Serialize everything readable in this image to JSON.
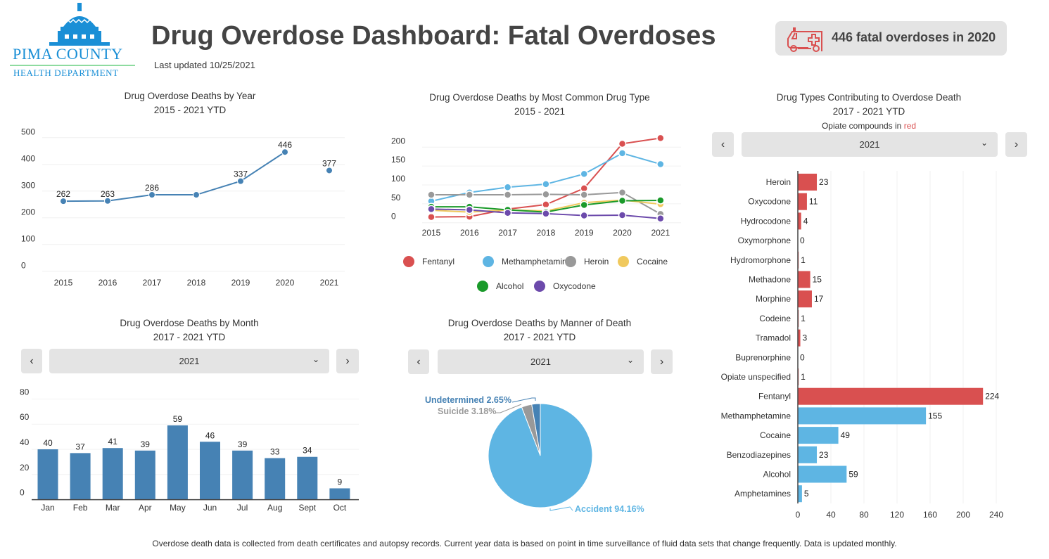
{
  "header": {
    "logo_line1": "PIMA COUNTY",
    "logo_line2": "HEALTH DEPARTMENT",
    "title": "Drug Overdose Dashboard: Fatal Overdoses",
    "updated": "Last updated 10/25/2021",
    "badge": "446 fatal overdoses in 2020",
    "badge_icon": "ambulance-icon"
  },
  "colors": {
    "fentanyl": "#d95050",
    "meth": "#5eb5e3",
    "heroin": "#999999",
    "cocaine": "#f0c95e",
    "alcohol": "#1a9a2a",
    "oxycodone": "#6c4aab",
    "bar": "#4682b4",
    "opiate": "#d95050",
    "nonopiate": "#5eb5e3"
  },
  "panels": {
    "year": {
      "title": "Drug Overdose Deaths by Year",
      "subtitle": "2015 - 2021 YTD"
    },
    "type": {
      "title": "Drug Overdose Deaths by Most Common Drug Type",
      "subtitle": "2015 - 2021"
    },
    "contrib": {
      "title": "Drug Types Contributing to Overdose Death",
      "subtitle": "2017 - 2021 YTD",
      "note_prefix": "Opiate compounds in",
      "note_red": "red",
      "select": "2021"
    },
    "month": {
      "title": "Drug Overdose Deaths by Month",
      "subtitle": "2017 - 2021 YTD",
      "select": "2021"
    },
    "manner": {
      "title": "Drug Overdose Deaths by Manner of Death",
      "subtitle": "2017 - 2021 YTD",
      "select": "2021"
    }
  },
  "footer": "Overdose death data is collected from death certificates and autopsy records. Current year data is based on point in time surveillance of fluid data sets that change frequently. Data is updated monthly.",
  "chart_data": [
    {
      "type": "line",
      "categories": [
        "2015",
        "2016",
        "2017",
        "2018",
        "2019",
        "2020",
        "2021"
      ],
      "values": [
        262,
        263,
        286,
        286,
        337,
        446,
        377
      ],
      "data_labels": [
        "262",
        "263",
        "286",
        "",
        "337",
        "446",
        "377"
      ],
      "yticks": [
        "0",
        "100",
        "200",
        "300",
        "400",
        "500"
      ],
      "ylim": [
        0,
        500
      ]
    },
    {
      "type": "line",
      "categories": [
        "2015",
        "2016",
        "2017",
        "2018",
        "2019",
        "2020",
        "2021"
      ],
      "yticks": [
        "0",
        "50",
        "100",
        "150",
        "200"
      ],
      "ylim": [
        0,
        200
      ],
      "legend": "bottom",
      "series": [
        {
          "name": "Fentanyl",
          "color": "#d95050",
          "values": [
            15,
            16,
            36,
            48,
            91,
            209,
            224
          ]
        },
        {
          "name": "Methamphetamine",
          "color": "#5eb5e3",
          "values": [
            57,
            80,
            94,
            102,
            129,
            184,
            155
          ]
        },
        {
          "name": "Heroin",
          "color": "#999999",
          "values": [
            74,
            74,
            74,
            75,
            74,
            80,
            23
          ]
        },
        {
          "name": "Cocaine",
          "color": "#f0c95e",
          "values": [
            33,
            28,
            34,
            31,
            53,
            60,
            49
          ]
        },
        {
          "name": "Alcohol",
          "color": "#1a9a2a",
          "values": [
            42,
            42,
            34,
            28,
            47,
            58,
            59
          ]
        },
        {
          "name": "Oxycodone",
          "color": "#6c4aab",
          "values": [
            36,
            34,
            26,
            24,
            19,
            20,
            11
          ]
        }
      ]
    },
    {
      "type": "bar",
      "categories": [
        "Jan",
        "Feb",
        "Mar",
        "Apr",
        "May",
        "Jun",
        "Jul",
        "Aug",
        "Sept",
        "Oct"
      ],
      "values": [
        40,
        37,
        41,
        39,
        59,
        46,
        39,
        33,
        34,
        9
      ],
      "yticks": [
        "0",
        "20",
        "40",
        "60",
        "80"
      ],
      "ylim": [
        0,
        80
      ]
    },
    {
      "type": "pie",
      "slices": [
        {
          "label": "Accident 94.16%",
          "value": 94.16,
          "color": "#5eb5e3"
        },
        {
          "label": "Suicide 3.18%",
          "value": 3.18,
          "color": "#999999"
        },
        {
          "label": "Undetermined 2.65%",
          "value": 2.65,
          "color": "#4682b4"
        }
      ]
    },
    {
      "type": "bar",
      "orientation": "horizontal",
      "categories": [
        "Heroin",
        "Oxycodone",
        "Hydrocodone",
        "Oxymorphone",
        "Hydromorphone",
        "Methadone",
        "Morphine",
        "Codeine",
        "Tramadol",
        "Buprenorphine",
        "Opiate unspecified",
        "Fentanyl",
        "Methamphetamine",
        "Cocaine",
        "Benzodiazepines",
        "Alcohol",
        "Amphetamines"
      ],
      "values": [
        23,
        11,
        4,
        0,
        1,
        15,
        17,
        1,
        3,
        0,
        1,
        224,
        155,
        49,
        23,
        59,
        5
      ],
      "opiate": [
        true,
        true,
        true,
        true,
        true,
        true,
        true,
        true,
        true,
        true,
        true,
        true,
        false,
        false,
        false,
        false,
        false
      ],
      "xticks": [
        "0",
        "40",
        "80",
        "120",
        "160",
        "200",
        "240"
      ],
      "xlim": [
        0,
        240
      ]
    }
  ]
}
